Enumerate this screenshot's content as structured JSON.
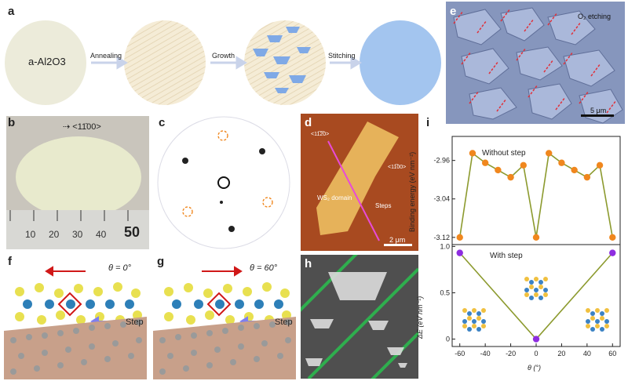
{
  "panels": {
    "a": {
      "label": "a",
      "steps": [
        "a-Al2O3",
        "Annealing",
        "Growth",
        "Stitching"
      ]
    },
    "b": {
      "label": "b",
      "direction": "<11̄00>",
      "ruler": [
        "10",
        "20",
        "30",
        "40",
        "50"
      ]
    },
    "c": {
      "label": "c"
    },
    "d": {
      "label": "d",
      "dir1": "<11̅2̅0>",
      "dir2": "<11̅00>",
      "domain": "WS₂ domain",
      "steps": "Steps",
      "scale": "2 μm"
    },
    "e": {
      "label": "e",
      "etch": "O₂ etching",
      "scale": "5 μm"
    },
    "f": {
      "label": "f",
      "theta": "θ = 0°",
      "step": "Step"
    },
    "g": {
      "label": "g",
      "theta": "θ = 60°",
      "step": "Step"
    },
    "h": {
      "label": "h"
    },
    "i": {
      "label": "i"
    }
  },
  "chart_data": [
    {
      "type": "line",
      "title": "Without step",
      "ylabel": "Binding energy (eV nm⁻²)",
      "x": [
        -60,
        -50,
        -40,
        -30,
        -20,
        -10,
        0,
        10,
        20,
        30,
        40,
        50,
        60
      ],
      "values": [
        -3.12,
        -2.945,
        -2.965,
        -2.98,
        -2.995,
        -2.97,
        -3.12,
        -2.945,
        -2.965,
        -2.98,
        -2.995,
        -2.97,
        -3.12
      ],
      "yticks": [
        "-2.96",
        "-3.04",
        "-3.12"
      ],
      "ylim": [
        -3.135,
        -2.91
      ],
      "colors": {
        "marker": "#f0871e",
        "line": "#8c9a2e"
      }
    },
    {
      "type": "line",
      "title": "With step",
      "xlabel": "θ (°)",
      "ylabel": "ΔE (eV nm⁻¹)",
      "x": [
        -60,
        0,
        60
      ],
      "values": [
        0.93,
        0.0,
        0.93
      ],
      "xticks": [
        "-60",
        "-40",
        "-20",
        "0",
        "20",
        "40",
        "60"
      ],
      "yticks": [
        "1.0",
        "0.5",
        "0"
      ],
      "ylim": [
        -0.08,
        1.02
      ],
      "colors": {
        "marker": "#8e2de0",
        "line": "#8c9a2e"
      }
    }
  ]
}
